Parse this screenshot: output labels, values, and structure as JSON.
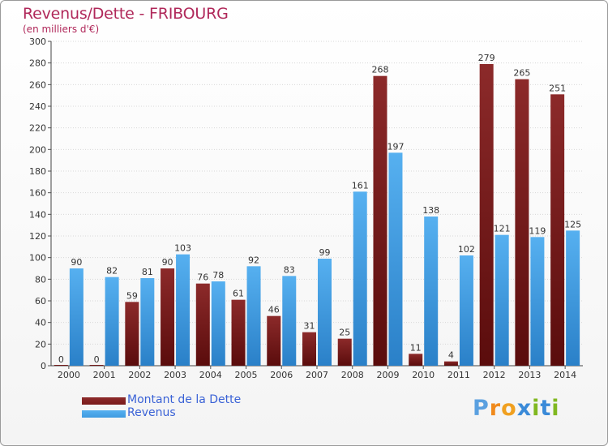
{
  "chart_data": {
    "type": "bar",
    "title": "Revenus/Dette - FRIBOURG",
    "subtitle": "(en milliers d'€)",
    "xlabel": "",
    "ylabel": "",
    "ylim": [
      0,
      300
    ],
    "yticks": [
      0,
      20,
      40,
      60,
      80,
      100,
      120,
      140,
      160,
      180,
      200,
      220,
      240,
      260,
      280,
      300
    ],
    "grid": true,
    "legend_position": "bottom-left",
    "categories": [
      "2000",
      "2001",
      "2002",
      "2003",
      "2004",
      "2005",
      "2006",
      "2007",
      "2008",
      "2009",
      "2010",
      "2011",
      "2012",
      "2013",
      "2014"
    ],
    "series": [
      {
        "name": "Montant de la Dette",
        "color": "#7a1a1a",
        "values": [
          0,
          0,
          59,
          90,
          76,
          61,
          46,
          31,
          25,
          268,
          11,
          4,
          279,
          265,
          251
        ]
      },
      {
        "name": "Revenus",
        "color": "#3f9be0",
        "values": [
          90,
          82,
          81,
          103,
          78,
          92,
          83,
          99,
          161,
          197,
          138,
          102,
          121,
          119,
          125
        ]
      }
    ]
  },
  "legend": {
    "debt_label": "Montant de la Dette",
    "revenue_label": "Revenus",
    "debt_color": "#7a1a1a",
    "revenue_color": "#3f9be0"
  },
  "logo": {
    "text": "Proxiti",
    "letter_colors": [
      "#5aa0e0",
      "#f08a1c",
      "#f0a020",
      "#3a8ad8",
      "#80b820",
      "#3a8ad8",
      "#80b820"
    ]
  }
}
